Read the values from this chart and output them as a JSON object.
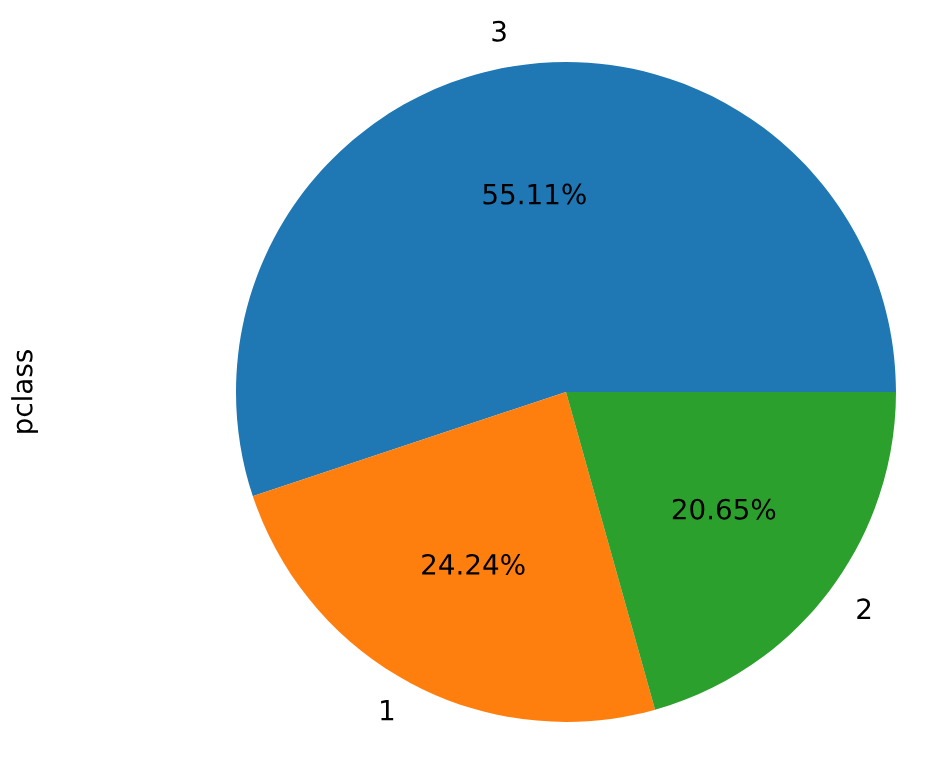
{
  "chart_data": {
    "type": "pie",
    "ylabel": "pclass",
    "categories": [
      "3",
      "1",
      "2"
    ],
    "values": [
      55.11,
      24.24,
      20.65
    ],
    "colors": [
      "#1f77b4",
      "#ff7f0e",
      "#2ca02c"
    ],
    "value_labels": [
      "55.11%",
      "24.24%",
      "20.65%"
    ]
  }
}
